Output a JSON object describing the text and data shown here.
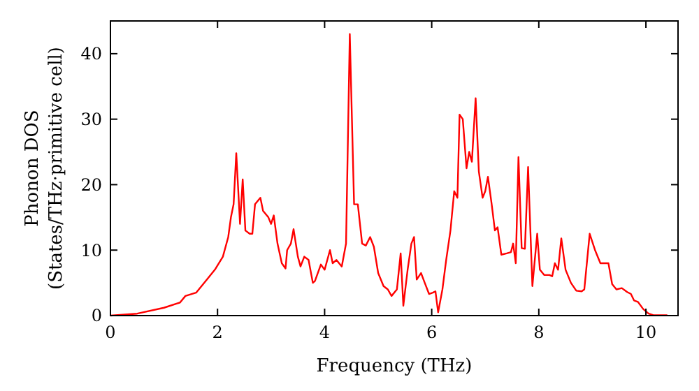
{
  "chart_data": {
    "type": "line",
    "xlabel": "Frequency (THz)",
    "ylabel": "Phonon DOS\n(States/THz·primitive cell)",
    "xlim": [
      0,
      10.6
    ],
    "ylim": [
      0,
      45
    ],
    "xticks": [
      0,
      2,
      4,
      6,
      8,
      10
    ],
    "yticks": [
      0,
      10,
      20,
      30,
      40
    ],
    "grid": false,
    "marker": "none",
    "line_style": "solid",
    "series": [
      {
        "color": "#ff0000",
        "x": [
          0,
          0.5,
          1.0,
          1.3,
          1.4,
          1.6,
          1.8,
          1.95,
          2.1,
          2.2,
          2.25,
          2.3,
          2.35,
          2.42,
          2.47,
          2.52,
          2.6,
          2.65,
          2.7,
          2.8,
          2.85,
          2.95,
          3.0,
          3.05,
          3.12,
          3.2,
          3.27,
          3.3,
          3.37,
          3.42,
          3.5,
          3.55,
          3.62,
          3.7,
          3.78,
          3.82,
          3.93,
          4.0,
          4.1,
          4.15,
          4.22,
          4.32,
          4.4,
          4.47,
          4.55,
          4.62,
          4.7,
          4.77,
          4.85,
          4.92,
          5.0,
          5.1,
          5.18,
          5.25,
          5.35,
          5.42,
          5.47,
          5.55,
          5.62,
          5.67,
          5.72,
          5.8,
          5.87,
          5.95,
          6.02,
          6.07,
          6.12,
          6.2,
          6.27,
          6.35,
          6.42,
          6.48,
          6.52,
          6.58,
          6.65,
          6.7,
          6.75,
          6.82,
          6.88,
          6.95,
          7.0,
          7.05,
          7.12,
          7.18,
          7.23,
          7.3,
          7.4,
          7.48,
          7.52,
          7.57,
          7.62,
          7.68,
          7.74,
          7.8,
          7.88,
          7.97,
          8.02,
          8.1,
          8.2,
          8.25,
          8.3,
          8.36,
          8.42,
          8.5,
          8.6,
          8.7,
          8.8,
          8.85,
          8.95,
          9.05,
          9.15,
          9.3,
          9.37,
          9.45,
          9.55,
          9.65,
          9.72,
          9.78,
          9.85,
          9.95,
          10.05,
          10.15,
          10.4
        ],
        "values": [
          0,
          0.3,
          1.2,
          2,
          3,
          3.5,
          5.5,
          7,
          9,
          12,
          15,
          17,
          24.8,
          14,
          20.8,
          13,
          12.5,
          12.5,
          17,
          18,
          16,
          15,
          14,
          15.3,
          11,
          8,
          7.2,
          10,
          11,
          13.2,
          9,
          7.5,
          9,
          8.5,
          5,
          5.3,
          7.8,
          7,
          10,
          8,
          8.5,
          7.5,
          11,
          43,
          17,
          17,
          11,
          10.7,
          12,
          10.5,
          6.5,
          4.5,
          4,
          3,
          4,
          9.5,
          1.5,
          7,
          11,
          12,
          5.5,
          6.5,
          5,
          3.3,
          3.5,
          3.7,
          0.5,
          4,
          8.5,
          13,
          19,
          18,
          30.7,
          30,
          22.5,
          25,
          23.5,
          33.2,
          22,
          18,
          19,
          21.2,
          17,
          13,
          13.5,
          9.3,
          9.5,
          9.7,
          11,
          8,
          24.2,
          10.3,
          10.2,
          22.7,
          4.5,
          12.5,
          7,
          6.2,
          6.2,
          6,
          8,
          7,
          11.8,
          7,
          5,
          3.8,
          3.7,
          4,
          12.5,
          10,
          8,
          8,
          4.8,
          4,
          4.2,
          3.6,
          3.3,
          2.3,
          2.1,
          1,
          0.3,
          0.05,
          0.05
        ]
      }
    ]
  }
}
